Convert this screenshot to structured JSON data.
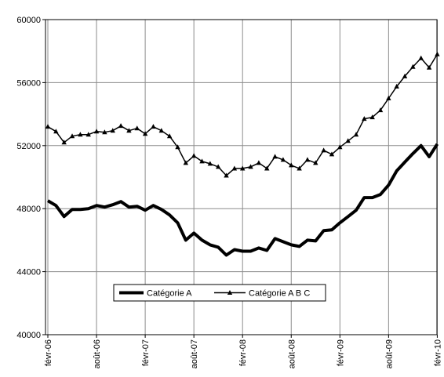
{
  "chart_data": {
    "type": "line",
    "title": "",
    "xlabel": "",
    "ylabel": "",
    "ylim": [
      40000,
      60000
    ],
    "yticks": [
      40000,
      44000,
      48000,
      52000,
      56000,
      60000
    ],
    "ytick_labels": [
      "40000",
      "44000",
      "48000",
      "52000",
      "56000",
      "60000"
    ],
    "x_start": "févr-06",
    "xtick_labels": [
      "févr-06",
      "août-06",
      "févr-07",
      "août-07",
      "févr-08",
      "août-08",
      "févr-09",
      "août-09",
      "févr-10"
    ],
    "grid": "vertical",
    "legend_position": "center-bottom",
    "series": [
      {
        "name": "Catégorie A",
        "color": "#000000",
        "marker": "none",
        "values": [
          48500,
          48200,
          47500,
          47950,
          47950,
          48000,
          48200,
          48100,
          48250,
          48450,
          48100,
          48150,
          47900,
          48200,
          47950,
          47600,
          47100,
          46000,
          46450,
          46000,
          45700,
          45550,
          45050,
          45400,
          45300,
          45300,
          45500,
          45350,
          46100,
          45900,
          45700,
          45600,
          46000,
          45950,
          46600,
          46650,
          47100,
          47500,
          47900,
          48700,
          48700,
          48900,
          49500,
          50400,
          50950,
          51500,
          52000,
          51300,
          52100
        ]
      },
      {
        "name": "Catégorie A B C",
        "color": "#000000",
        "marker": "triangle",
        "values": [
          53200,
          52900,
          52200,
          52600,
          52700,
          52700,
          52900,
          52850,
          52950,
          53250,
          52950,
          53100,
          52750,
          53200,
          52950,
          52600,
          51900,
          50900,
          51350,
          51000,
          50850,
          50650,
          50100,
          50550,
          50550,
          50650,
          50900,
          50550,
          51300,
          51100,
          50750,
          50550,
          51100,
          50900,
          51700,
          51450,
          51900,
          52300,
          52700,
          53700,
          53800,
          54250,
          55000,
          55750,
          56400,
          57000,
          57550,
          56950,
          57800
        ]
      }
    ]
  }
}
